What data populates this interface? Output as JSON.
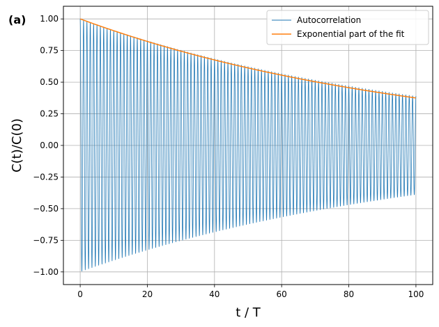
{
  "panel_label": "(a)",
  "chart_data": {
    "type": "line",
    "xlabel": "t / T",
    "ylabel": "C(t)/C(0)",
    "xlim": [
      -5,
      105
    ],
    "ylim": [
      -1.1,
      1.1
    ],
    "x_ticks": [
      0,
      20,
      40,
      60,
      80,
      100
    ],
    "y_ticks": [
      -1.0,
      -0.75,
      -0.5,
      -0.25,
      0.0,
      0.25,
      0.5,
      0.75,
      1.0
    ],
    "x_tick_labels": [
      "0",
      "20",
      "40",
      "60",
      "80",
      "100"
    ],
    "y_tick_labels": [
      "−1.00",
      "−0.75",
      "−0.50",
      "−0.25",
      "0.00",
      "0.25",
      "0.50",
      "0.75",
      "1.00"
    ],
    "grid": true,
    "legend_position": "top-right",
    "series": [
      {
        "name": "Autocorrelation",
        "color": "#1f77b4",
        "style": "oscillating",
        "x_range": [
          0,
          100
        ],
        "cycles": 100,
        "envelope_start": 1.0,
        "envelope_end": 0.39
      },
      {
        "name": "Exponential part of the fit",
        "color": "#ff7f0e",
        "style": "exponential",
        "x_range": [
          0,
          100
        ],
        "amplitude": 1.0,
        "decay_time": 102
      }
    ]
  }
}
